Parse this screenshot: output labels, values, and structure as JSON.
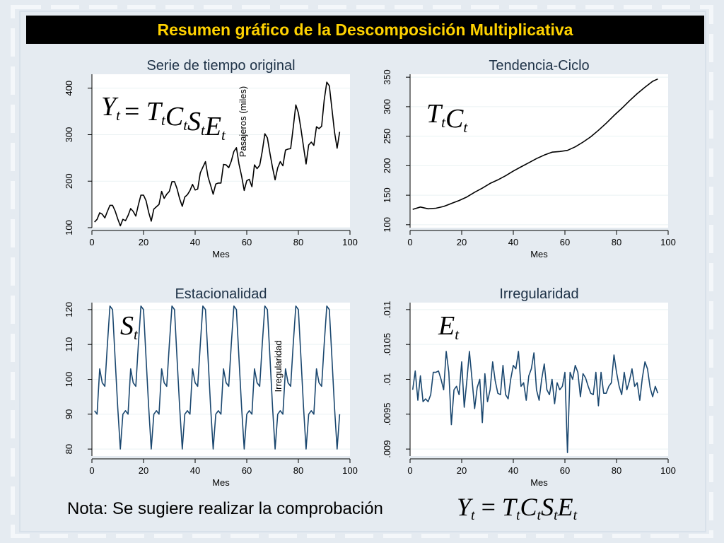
{
  "header": {
    "title": "Resumen gráfico de la Descomposición Multiplicativa"
  },
  "note": {
    "text": "Nota: Se sugiere realizar la comprobación",
    "formula": {
      "Y": "Y",
      "t": "t",
      "eq": "=",
      "T": "T",
      "C": "C",
      "S": "S",
      "E": "E"
    }
  },
  "colors": {
    "original_line": "#000000",
    "trend_line": "#000000",
    "seasonal_line": "#1a476f",
    "irregular_line": "#1a476f",
    "plot_bg": "#ffffff",
    "grid": "#eaf2f3",
    "title_text": "#1e3247",
    "header_bg": "#000000",
    "header_text": "#ffd200"
  },
  "chart_data": [
    {
      "type": "line",
      "title": "Serie de tiempo original",
      "xlabel": "Mes",
      "ylabel": "Pasajeros (miles)",
      "overlay_formula": "Y_t = T_t C_t S_t E_t",
      "xlim": [
        0,
        100
      ],
      "ylim": [
        100,
        430
      ],
      "xticks": [
        "0",
        "20",
        "40",
        "60",
        "80",
        "100"
      ],
      "yticks": [
        "100",
        "200",
        "300",
        "400"
      ],
      "x": [
        1,
        2,
        3,
        4,
        5,
        6,
        7,
        8,
        9,
        10,
        11,
        12,
        13,
        14,
        15,
        16,
        17,
        18,
        19,
        20,
        21,
        22,
        23,
        24,
        25,
        26,
        27,
        28,
        29,
        30,
        31,
        32,
        33,
        34,
        35,
        36,
        37,
        38,
        39,
        40,
        41,
        42,
        43,
        44,
        45,
        46,
        47,
        48,
        49,
        50,
        51,
        52,
        53,
        54,
        55,
        56,
        57,
        58,
        59,
        60,
        61,
        62,
        63,
        64,
        65,
        66,
        67,
        68,
        69,
        70,
        71,
        72,
        73,
        74,
        75,
        76,
        77,
        78,
        79,
        80,
        81,
        82,
        83,
        84,
        85,
        86,
        87,
        88,
        89,
        90,
        91,
        92,
        93,
        94,
        95,
        96
      ],
      "y": [
        112,
        118,
        132,
        129,
        121,
        135,
        148,
        148,
        136,
        119,
        104,
        118,
        115,
        126,
        141,
        135,
        125,
        149,
        170,
        170,
        158,
        133,
        114,
        140,
        145,
        150,
        178,
        163,
        172,
        178,
        199,
        199,
        184,
        162,
        146,
        166,
        171,
        180,
        193,
        181,
        183,
        218,
        230,
        242,
        209,
        191,
        172,
        194,
        196,
        196,
        236,
        235,
        229,
        243,
        264,
        272,
        237,
        211,
        180,
        201,
        204,
        188,
        235,
        227,
        234,
        264,
        302,
        293,
        259,
        229,
        203,
        229,
        242,
        233,
        267,
        269,
        270,
        315,
        364,
        347,
        312,
        274,
        237,
        278,
        284,
        277,
        317,
        313,
        318,
        374,
        413,
        405,
        355,
        306,
        271,
        306
      ]
    },
    {
      "type": "line",
      "title": "Tendencia-Ciclo",
      "xlabel": "Mes",
      "overlay_formula": "T_t C_t",
      "xlim": [
        0,
        100
      ],
      "ylim": [
        95,
        355
      ],
      "xticks": [
        "0",
        "20",
        "40",
        "60",
        "80",
        "100"
      ],
      "yticks": [
        "100",
        "150",
        "200",
        "250",
        "300",
        "350"
      ],
      "x": [
        1,
        4,
        7,
        10,
        13,
        16,
        19,
        22,
        25,
        28,
        31,
        34,
        37,
        40,
        43,
        46,
        49,
        52,
        55,
        58,
        61,
        64,
        67,
        70,
        73,
        76,
        79,
        82,
        85,
        88,
        91,
        94,
        96
      ],
      "y": [
        126,
        130,
        127,
        128,
        131,
        136,
        141,
        147,
        155,
        162,
        170,
        176,
        183,
        191,
        198,
        205,
        212,
        218,
        223,
        224,
        226,
        232,
        240,
        249,
        260,
        272,
        285,
        297,
        310,
        322,
        333,
        343,
        347
      ]
    },
    {
      "type": "line",
      "title": "Estacionalidad",
      "xlabel": "Mes",
      "ylabel": "Irregularidad",
      "overlay_formula": "S_t",
      "xlim": [
        0,
        100
      ],
      "ylim": [
        78,
        122
      ],
      "xticks": [
        "0",
        "20",
        "40",
        "60",
        "80",
        "100"
      ],
      "yticks": [
        "80",
        "90",
        "100",
        "110",
        "120"
      ],
      "x": [
        1,
        2,
        3,
        4,
        5,
        6,
        7,
        8,
        9,
        10,
        11,
        12,
        13,
        14,
        15,
        16,
        17,
        18,
        19,
        20,
        21,
        22,
        23,
        24,
        25,
        26,
        27,
        28,
        29,
        30,
        31,
        32,
        33,
        34,
        35,
        36,
        37,
        38,
        39,
        40,
        41,
        42,
        43,
        44,
        45,
        46,
        47,
        48,
        49,
        50,
        51,
        52,
        53,
        54,
        55,
        56,
        57,
        58,
        59,
        60,
        61,
        62,
        63,
        64,
        65,
        66,
        67,
        68,
        69,
        70,
        71,
        72,
        73,
        74,
        75,
        76,
        77,
        78,
        79,
        80,
        81,
        82,
        83,
        84,
        85,
        86,
        87,
        88,
        89,
        90,
        91,
        92,
        93,
        94,
        95,
        96
      ],
      "y": [
        91,
        90,
        103,
        99,
        98,
        110,
        121,
        120,
        106,
        92,
        80,
        90,
        91,
        90,
        103,
        99,
        98,
        110,
        121,
        120,
        106,
        92,
        80,
        90,
        91,
        90,
        103,
        99,
        98,
        110,
        121,
        120,
        106,
        92,
        80,
        90,
        91,
        90,
        103,
        99,
        98,
        110,
        121,
        120,
        106,
        92,
        80,
        90,
        91,
        90,
        103,
        99,
        98,
        110,
        121,
        120,
        106,
        92,
        80,
        90,
        91,
        90,
        103,
        99,
        98,
        110,
        121,
        120,
        106,
        92,
        80,
        90,
        91,
        90,
        103,
        99,
        98,
        110,
        121,
        120,
        106,
        92,
        80,
        90,
        91,
        90,
        103,
        99,
        98,
        110,
        121,
        120,
        106,
        92,
        80,
        90
      ]
    },
    {
      "type": "line",
      "title": "Irregularidad",
      "xlabel": "Mes",
      "overlay_formula": "E_t",
      "xlim": [
        0,
        100
      ],
      "ylim": [
        0.0089,
        0.0111
      ],
      "xticks": [
        "0",
        "20",
        "40",
        "60",
        "80",
        "100"
      ],
      "yticks": [
        ".009",
        ".0095",
        ".01",
        ".0105",
        ".011"
      ],
      "x": [
        1,
        2,
        3,
        4,
        5,
        6,
        7,
        8,
        9,
        10,
        11,
        12,
        13,
        14,
        15,
        16,
        17,
        18,
        19,
        20,
        21,
        22,
        23,
        24,
        25,
        26,
        27,
        28,
        29,
        30,
        31,
        32,
        33,
        34,
        35,
        36,
        37,
        38,
        39,
        40,
        41,
        42,
        43,
        44,
        45,
        46,
        47,
        48,
        49,
        50,
        51,
        52,
        53,
        54,
        55,
        56,
        57,
        58,
        59,
        60,
        61,
        62,
        63,
        64,
        65,
        66,
        67,
        68,
        69,
        70,
        71,
        72,
        73,
        74,
        75,
        76,
        77,
        78,
        79,
        80,
        81,
        82,
        83,
        84,
        85,
        86,
        87,
        88,
        89,
        90,
        91,
        92,
        93,
        94,
        95,
        96
      ],
      "y": [
        0.00985,
        0.01012,
        0.0097,
        0.01005,
        0.00968,
        0.00972,
        0.00968,
        0.00978,
        0.0101,
        0.0101,
        0.01012,
        0.01,
        0.00985,
        0.0104,
        0.0101,
        0.00935,
        0.00985,
        0.0099,
        0.00978,
        0.01025,
        0.0096,
        0.00998,
        0.0104,
        0.01,
        0.00958,
        0.00988,
        0.01,
        0.00938,
        0.01008,
        0.00968,
        0.00985,
        0.01025,
        0.00998,
        0.0098,
        0.00978,
        0.0102,
        0.00978,
        0.00972,
        0.01,
        0.0102,
        0.01015,
        0.0104,
        0.0099,
        0.00995,
        0.0097,
        0.01005,
        0.01015,
        0.01038,
        0.00985,
        0.0097,
        0.01,
        0.01022,
        0.00985,
        0.00978,
        0.01,
        0.00965,
        0.00995,
        0.00985,
        0.0099,
        0.0101,
        0.00895,
        0.0101,
        0.01,
        0.0102,
        0.0101,
        0.00975,
        0.01008,
        0.01002,
        0.0099,
        0.0098,
        0.00978,
        0.0101,
        0.00962,
        0.0101,
        0.0098,
        0.0098,
        0.0099,
        0.00995,
        0.01035,
        0.0101,
        0.0099,
        0.00978,
        0.0101,
        0.00985,
        0.00998,
        0.01015,
        0.0099,
        0.00995,
        0.0097,
        0.01002,
        0.01025,
        0.01015,
        0.00988,
        0.00975,
        0.0099,
        0.0098
      ]
    }
  ]
}
